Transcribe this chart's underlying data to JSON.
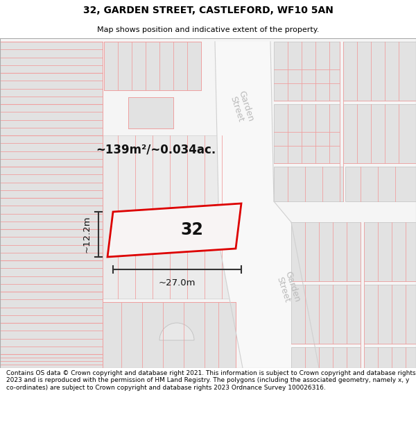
{
  "title": "32, GARDEN STREET, CASTLEFORD, WF10 5AN",
  "subtitle": "Map shows position and indicative extent of the property.",
  "footer": "Contains OS data © Crown copyright and database right 2021. This information is subject to Crown copyright and database rights 2023 and is reproduced with the permission of HM Land Registry. The polygons (including the associated geometry, namely x, y co-ordinates) are subject to Crown copyright and database rights 2023 Ordnance Survey 100026316.",
  "area_text": "~139m²/~0.034ac.",
  "house_number": "32",
  "dim_width": "~27.0m",
  "dim_height": "~12.2m",
  "bg_color": "#f5f5f5",
  "road_color": "#f0eeee",
  "building_fill": "#e2e2e2",
  "building_edge": "#c8c8c8",
  "pink_color": "#f0a0a0",
  "plot_edge": "#dd0000",
  "plot_fill": "#f8f4f4",
  "street_color": "#bbbbbb",
  "title_fontsize": 10,
  "subtitle_fontsize": 8,
  "footer_fontsize": 6.5
}
